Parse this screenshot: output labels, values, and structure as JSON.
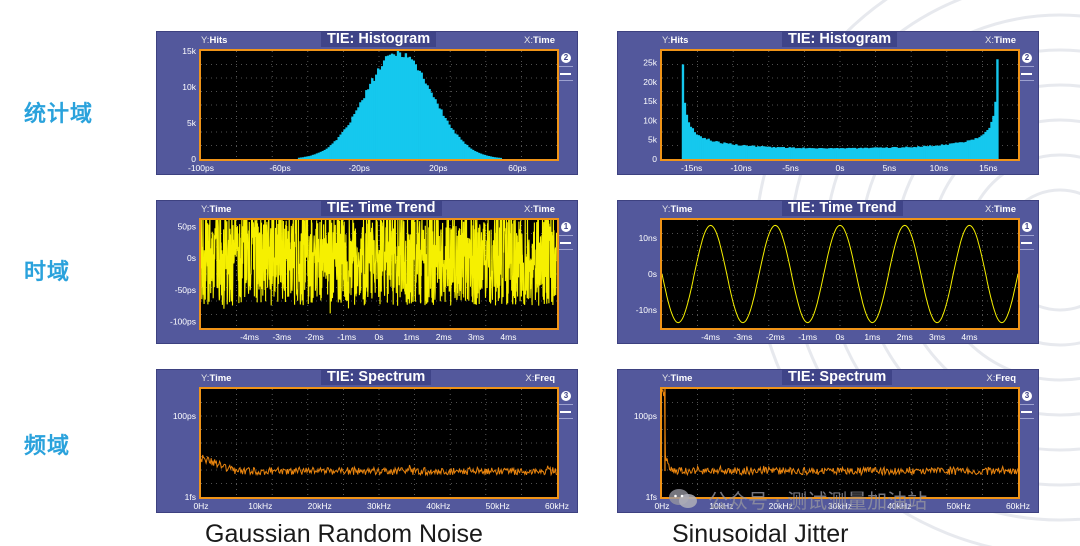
{
  "row_labels": [
    "统计域",
    "时域",
    "频域"
  ],
  "captions": [
    "Gaussian Random Noise",
    "Sinusoidal Jitter"
  ],
  "watermark": "公众号 · 测试测量加油站",
  "colors": {
    "histogram": "#15c8ee",
    "trend": "#f6f000",
    "spectrum": "#e8840e",
    "frame": "#f09418",
    "panel": "#53589c"
  },
  "chart_data": [
    {
      "id": "hist-gaussian",
      "type": "bar",
      "title": "TIE: Histogram",
      "ylabel_key": "Y:",
      "ylabel": "Hits",
      "xlabel_key": "X:",
      "xlabel": "Time",
      "badge": "2",
      "xlim": [
        -100,
        80
      ],
      "ylim": [
        0,
        15
      ],
      "xticks": [
        -100,
        -60,
        -20,
        20,
        60
      ],
      "xtick_labels": [
        "-100ps",
        "-60ps",
        "-20ps",
        "20ps",
        "60ps"
      ],
      "yticks": [
        0,
        5,
        10,
        15
      ],
      "ytick_labels": [
        "0",
        "5k",
        "10k",
        "15k"
      ],
      "distribution": "gaussian",
      "mean": 0,
      "sigma": 17,
      "peak": 14.8
    },
    {
      "id": "hist-sinusoidal",
      "type": "bar",
      "title": "TIE: Histogram",
      "ylabel_key": "Y:",
      "ylabel": "Hits",
      "xlabel_key": "X:",
      "xlabel": "Time",
      "badge": "2",
      "xlim": [
        -18,
        18
      ],
      "ylim": [
        0,
        28
      ],
      "xticks": [
        -15,
        -10,
        -5,
        0,
        5,
        10,
        15
      ],
      "xtick_labels": [
        "-15ns",
        "-10ns",
        "-5ns",
        "0s",
        "5ns",
        "10ns",
        "15ns"
      ],
      "yticks": [
        0,
        5,
        10,
        15,
        20,
        25
      ],
      "ytick_labels": [
        "0",
        "5k",
        "10k",
        "15k",
        "20k",
        "25k"
      ],
      "distribution": "arcsine",
      "amplitude": 16,
      "peak": 28
    },
    {
      "id": "trend-gaussian",
      "type": "line",
      "title": "TIE: Time Trend",
      "ylabel_key": "Y:",
      "ylabel": "Time",
      "xlabel_key": "X:",
      "xlabel": "Time",
      "badge": "1",
      "xlim": [
        -5.5,
        5.5
      ],
      "ylim": [
        -110,
        60
      ],
      "xticks": [
        -4,
        -3,
        -2,
        -1,
        0,
        1,
        2,
        3,
        4
      ],
      "xtick_labels": [
        "-4ms",
        "-3ms",
        "-2ms",
        "-1ms",
        "0s",
        "1ms",
        "2ms",
        "3ms",
        "4ms"
      ],
      "yticks": [
        50,
        0,
        -50,
        -100
      ],
      "ytick_labels": [
        "50ps",
        "0s",
        "-50ps",
        "-100ps"
      ],
      "signal": "noise",
      "band": [
        -75,
        78
      ]
    },
    {
      "id": "trend-sinusoidal",
      "type": "line",
      "title": "TIE: Time Trend",
      "ylabel_key": "Y:",
      "ylabel": "Time",
      "xlabel_key": "X:",
      "xlabel": "Time",
      "badge": "1",
      "xlim": [
        -5.5,
        5.5
      ],
      "ylim": [
        -15,
        15
      ],
      "xticks": [
        -4,
        -3,
        -2,
        -1,
        0,
        1,
        2,
        3,
        4
      ],
      "xtick_labels": [
        "-4ms",
        "-3ms",
        "-2ms",
        "-1ms",
        "0s",
        "1ms",
        "2ms",
        "3ms",
        "4ms"
      ],
      "yticks": [
        10,
        0,
        -10
      ],
      "ytick_labels": [
        "10ns",
        "0s",
        "-10ns"
      ],
      "signal": "sine",
      "amplitude": 13.5,
      "period": 2.0,
      "phase_x": -4.5
    },
    {
      "id": "spectrum-gaussian",
      "type": "line",
      "title": "TIE: Spectrum",
      "ylabel_key": "Y:",
      "ylabel": "Time",
      "xlabel_key": "X:",
      "xlabel": "Freq",
      "badge": "3",
      "xlim": [
        0,
        60
      ],
      "ylim": [
        0,
        1
      ],
      "xticks": [
        0,
        10,
        20,
        30,
        40,
        50,
        60
      ],
      "xtick_labels": [
        "0Hz",
        "10kHz",
        "20kHz",
        "30kHz",
        "40kHz",
        "50kHz",
        "60kHz"
      ],
      "yticks": [
        0.75,
        0
      ],
      "ytick_labels": [
        "100ps",
        "1fs"
      ],
      "signal": "floor",
      "floor": 0.24,
      "start": 0.36
    },
    {
      "id": "spectrum-sinusoidal",
      "type": "line",
      "title": "TIE: Spectrum",
      "ylabel_key": "Y:",
      "ylabel": "Time",
      "xlabel_key": "X:",
      "xlabel": "Freq",
      "badge": "3",
      "xlim": [
        0,
        60
      ],
      "ylim": [
        0,
        1
      ],
      "xticks": [
        0,
        10,
        20,
        30,
        40,
        50,
        60
      ],
      "xtick_labels": [
        "0Hz",
        "10kHz",
        "20kHz",
        "30kHz",
        "40kHz",
        "50kHz",
        "60kHz"
      ],
      "yticks": [
        0.75,
        0
      ],
      "ytick_labels": [
        "100ps",
        "1fs"
      ],
      "signal": "peak",
      "floor": 0.24,
      "peak_x": 0.5,
      "peak_y": 1.0
    }
  ]
}
